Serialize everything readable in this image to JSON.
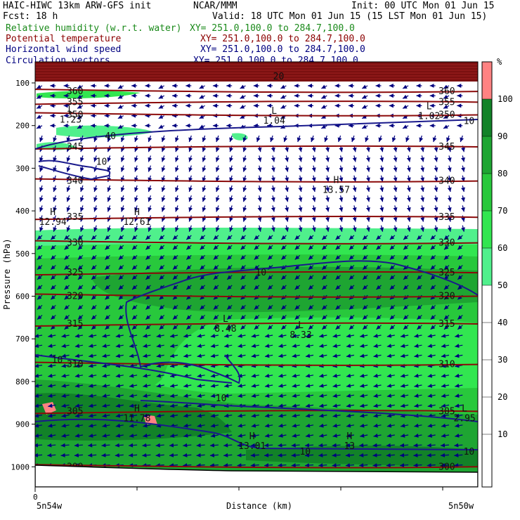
{
  "header": {
    "line1_left": "HAIC-HIWC 13km ARW-GFS init",
    "line1_mid": "NCAR/MMM",
    "line1_right": "Init: 00 UTC Mon 01 Jun 15",
    "line2_left": "Fcst:    18 h",
    "line2_right": "Valid: 18 UTC Mon 01 Jun 15 (15 LST Mon 01 Jun 15)"
  },
  "fields": [
    {
      "name": "Relative humidity (w.r.t. water)",
      "xy": "XY= 251.0,100.0 to 284.7,100.0",
      "color": "#1a8a1a"
    },
    {
      "name": "Potential temperature",
      "xy": "XY= 251.0,100.0 to 284.7,100.0",
      "color": "#8b0000"
    },
    {
      "name": "Horizontal wind speed",
      "xy": "XY= 251.0,100.0 to 284.7,100.0",
      "color": "#000080"
    },
    {
      "name": "Circulation vectors",
      "xy": "XY= 251.0,100.0 to 284.7,100.0",
      "color": "#000080"
    }
  ],
  "colorbar": {
    "unit": "%",
    "ticks": [
      "10",
      "20",
      "30",
      "40",
      "50",
      "60",
      "70",
      "80",
      "90",
      "100"
    ]
  },
  "axes": {
    "ylabel": "Pressure (hPa)",
    "xlabel": "Distance (km)",
    "x_tick_zero": "0",
    "x_left_label": "5n54w",
    "x_right_label": "5n50w"
  },
  "chart_data": {
    "type": "heatmap",
    "description_fields": [
      "Relative humidity (w.r.t. water)",
      "Potential temperature",
      "Horizontal wind speed",
      "Circulation vectors"
    ],
    "y_axis": {
      "label": "Pressure (hPa)",
      "ticks": [
        100,
        200,
        300,
        400,
        500,
        600,
        700,
        800,
        900,
        1000
      ],
      "range": [
        1050,
        50
      ]
    },
    "x_axis": {
      "label": "Distance (km)",
      "start_label": "5n54w",
      "end_label": "5n50w",
      "zero_tick": "0"
    },
    "rh_colors": [
      {
        "range": "<50",
        "color": "#ffffff"
      },
      {
        "range": "50-60",
        "color": "#50f08c"
      },
      {
        "range": "60-70",
        "color": "#32e650"
      },
      {
        "range": "70-80",
        "color": "#28c83c"
      },
      {
        "range": "80-90",
        "color": "#1ea532"
      },
      {
        "range": "90-100",
        "color": "#128228"
      },
      {
        "range": ">100",
        "color": "#ff8282"
      }
    ],
    "theta_contours": [
      {
        "label": "300",
        "pressure": 1000
      },
      {
        "label": "305",
        "pressure": 870
      },
      {
        "label": "310",
        "pressure": 760
      },
      {
        "label": "315",
        "pressure": 665
      },
      {
        "label": "320",
        "pressure": 600
      },
      {
        "label": "325",
        "pressure": 545
      },
      {
        "label": "330",
        "pressure": 475
      },
      {
        "label": "335",
        "pressure": 415
      },
      {
        "label": "340",
        "pressure": 330
      },
      {
        "label": "345",
        "pressure": 250
      },
      {
        "label": "350",
        "pressure": 175
      },
      {
        "label": "355",
        "pressure": 145
      },
      {
        "label": "360",
        "pressure": 120
      }
    ],
    "wind_labels": [
      {
        "label": "10",
        "x_frac": 0.51,
        "pressure": 545
      },
      {
        "label": "10",
        "x_frac": 0.42,
        "pressure": 840
      },
      {
        "label": "10",
        "x_frac": 0.61,
        "pressure": 965
      },
      {
        "label": "10",
        "x_frac": 0.98,
        "pressure": 965
      },
      {
        "label": "10",
        "x_frac": 0.05,
        "pressure": 750
      },
      {
        "label": "10",
        "x_frac": 0.15,
        "pressure": 285
      },
      {
        "label": "10",
        "x_frac": 0.98,
        "pressure": 190
      },
      {
        "label": "40",
        "x_frac": 0.17,
        "pressure": 225
      },
      {
        "label": "20",
        "x_frac": 0.55,
        "pressure": 85
      }
    ],
    "extrema": [
      {
        "type": "L",
        "value": "1.23",
        "x_frac": 0.08,
        "pressure": 180
      },
      {
        "type": "L",
        "value": "1.04",
        "x_frac": 0.54,
        "pressure": 182
      },
      {
        "type": "L",
        "value": "1.02",
        "x_frac": 0.89,
        "pressure": 172
      },
      {
        "type": "H",
        "value": "13.57",
        "x_frac": 0.68,
        "pressure": 345
      },
      {
        "type": "H",
        "value": "12.94",
        "x_frac": 0.04,
        "pressure": 420
      },
      {
        "type": "H",
        "value": "12.61",
        "x_frac": 0.23,
        "pressure": 420
      },
      {
        "type": "L",
        "value": "8.48",
        "x_frac": 0.43,
        "pressure": 670
      },
      {
        "type": "L",
        "value": "8.33",
        "x_frac": 0.6,
        "pressure": 685
      },
      {
        "type": "H",
        "value": "11.78",
        "x_frac": 0.23,
        "pressure": 880
      },
      {
        "type": "H",
        "value": "13.01",
        "x_frac": 0.49,
        "pressure": 945
      },
      {
        "type": "H",
        "value": "13",
        "x_frac": 0.71,
        "pressure": 945
      },
      {
        "type": "L",
        "value": "2.95",
        "x_frac": 0.97,
        "pressure": 880
      }
    ]
  }
}
